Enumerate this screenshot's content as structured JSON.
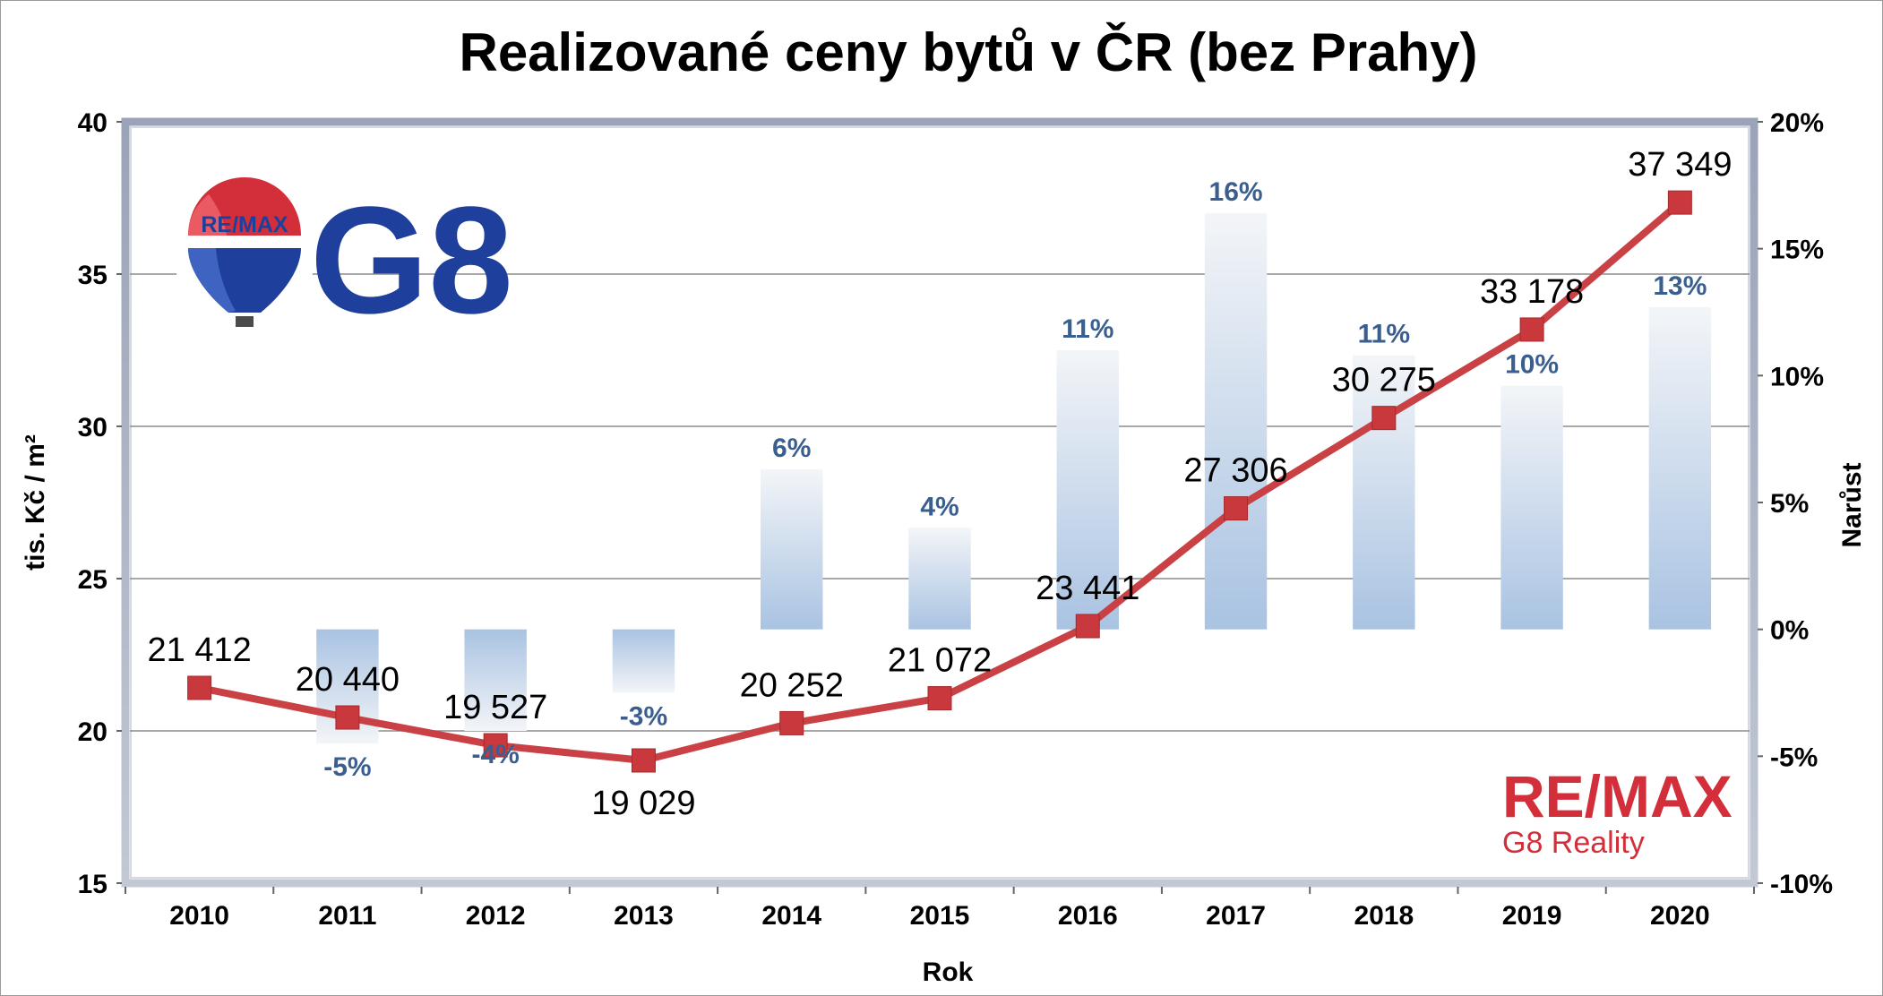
{
  "chart_data": {
    "type": "bar+line",
    "title": "Realizované ceny bytů v ČR (bez Prahy)",
    "xlabel": "Rok",
    "ylabel_left": "tis. Kč / m²",
    "ylabel_right": "Narůst",
    "categories": [
      "2010",
      "2011",
      "2012",
      "2013",
      "2014",
      "2015",
      "2016",
      "2017",
      "2018",
      "2019",
      "2020"
    ],
    "y_left": {
      "min": 15,
      "max": 40,
      "ticks": [
        15,
        20,
        25,
        30,
        35,
        40
      ]
    },
    "y_right": {
      "min": -10,
      "max": 20,
      "ticks": [
        "-10%",
        "-5%",
        "0%",
        "5%",
        "10%",
        "15%",
        "20%"
      ],
      "tick_values": [
        -10,
        -5,
        0,
        5,
        10,
        15,
        20
      ]
    },
    "grid": "horizontal",
    "line_series": {
      "values": [
        21.412,
        20.44,
        19.527,
        19.029,
        20.252,
        21.072,
        23.441,
        27.306,
        30.275,
        33.178,
        37.349
      ],
      "labels": [
        "21 412",
        "20 440",
        "19 527",
        "19 029",
        "20 252",
        "21 072",
        "23 441",
        "27 306",
        "30 275",
        "33 178",
        "37 349"
      ],
      "color": "#c94144",
      "marker_color": "#c8383c"
    },
    "bar_series": {
      "values": [
        null,
        -4.5,
        -4,
        -2.5,
        6.3,
        4,
        11,
        16.4,
        10.8,
        9.6,
        12.7
      ],
      "labels": [
        "",
        "-5%",
        "-4%",
        "-3%",
        "6%",
        "4%",
        "11%",
        "16%",
        "11%",
        "10%",
        "13%"
      ],
      "color_top": "#f3f5f8",
      "color_bottom": "#a9c3e2"
    }
  },
  "logos": {
    "balloon_text": "RE/MAX",
    "g8_text": "G8",
    "brand_name": "RE/MAX",
    "brand_sub": "G8 Reality"
  }
}
